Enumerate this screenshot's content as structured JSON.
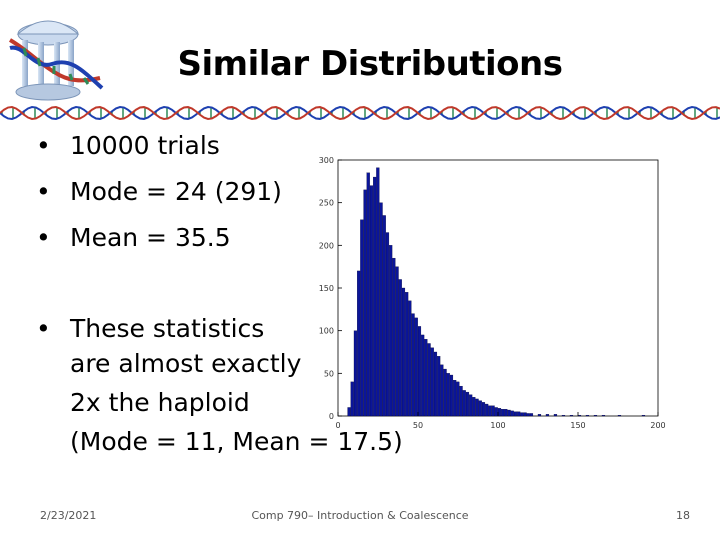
{
  "slide": {
    "title": "Similar Distributions",
    "bullets": [
      {
        "text": "10000 trials"
      },
      {
        "text": "Mode = 24 (291)"
      },
      {
        "text": "Mean = 35.5"
      }
    ],
    "note_lines": [
      "These statistics",
      "are almost exactly",
      "2x the haploid",
      "(Mode = 11, Mean = 17.5)"
    ],
    "footer": {
      "date": "2/23/2021",
      "center": "Comp 790– Introduction & Coalescence",
      "page": "18"
    }
  },
  "chart_data": {
    "type": "bar",
    "title": "",
    "xlabel": "",
    "ylabel": "",
    "xlim": [
      0,
      200
    ],
    "ylim": [
      0,
      300
    ],
    "xticks": [
      0,
      50,
      100,
      150,
      200
    ],
    "yticks": [
      0,
      50,
      100,
      150,
      200,
      250,
      300
    ],
    "bar_color": "#0b1599",
    "x": [
      6,
      8,
      10,
      12,
      14,
      16,
      18,
      20,
      22,
      24,
      26,
      28,
      30,
      32,
      34,
      36,
      38,
      40,
      42,
      44,
      46,
      48,
      50,
      52,
      54,
      56,
      58,
      60,
      62,
      64,
      66,
      68,
      70,
      72,
      74,
      76,
      78,
      80,
      82,
      84,
      86,
      88,
      90,
      92,
      94,
      96,
      98,
      100,
      102,
      104,
      106,
      108,
      110,
      112,
      114,
      116,
      118,
      120,
      125,
      130,
      135,
      140,
      145,
      150,
      155,
      160,
      165,
      170,
      175,
      180,
      185,
      190,
      195
    ],
    "values": [
      10,
      40,
      100,
      170,
      230,
      265,
      285,
      270,
      280,
      291,
      250,
      235,
      215,
      200,
      185,
      175,
      160,
      150,
      145,
      135,
      120,
      115,
      105,
      95,
      90,
      85,
      80,
      75,
      70,
      60,
      55,
      50,
      48,
      42,
      40,
      35,
      30,
      28,
      25,
      22,
      20,
      18,
      16,
      14,
      12,
      12,
      10,
      9,
      8,
      8,
      7,
      6,
      5,
      5,
      4,
      4,
      3,
      3,
      2,
      2,
      2,
      1,
      1,
      1,
      1,
      1,
      1,
      0,
      1,
      0,
      0,
      1,
      0
    ]
  },
  "colors": {
    "accent": "#0b1599",
    "helix_blue": "#1e40b0",
    "helix_red": "#c0392b"
  },
  "icons": {
    "logo": "old-well-dna-logo"
  }
}
